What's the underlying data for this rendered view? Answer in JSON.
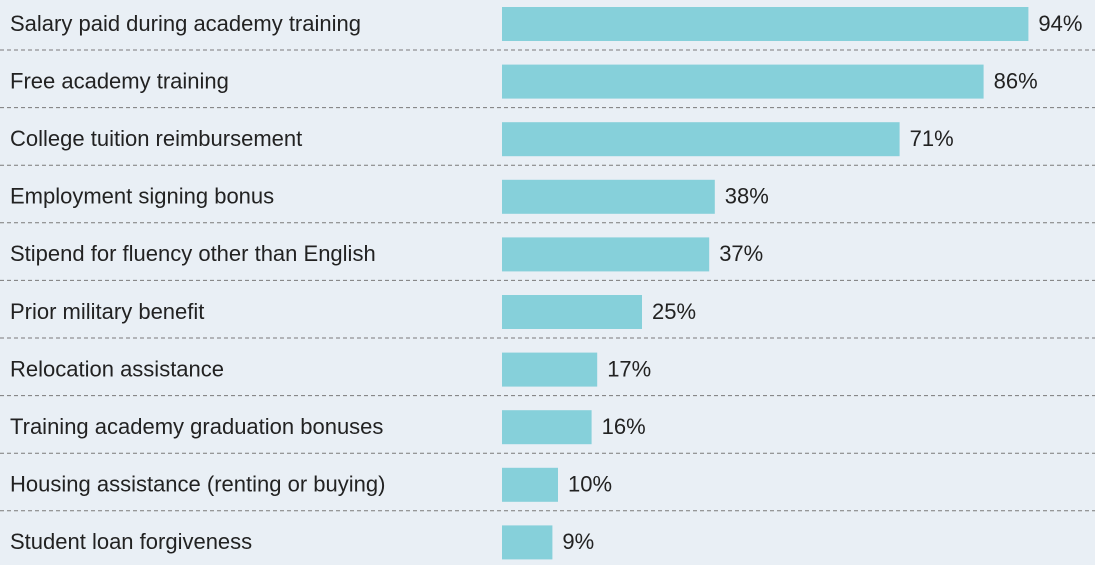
{
  "chart_data": {
    "type": "bar",
    "orientation": "horizontal",
    "categories": [
      "Salary paid during academy training",
      "Free academy training",
      "College tuition reimbursement",
      "Employment signing bonus",
      "Stipend for fluency other than English",
      "Prior military benefit",
      "Relocation assistance",
      "Training academy graduation bonuses",
      "Housing assistance (renting or buying)",
      "Student loan forgiveness"
    ],
    "values": [
      94,
      86,
      71,
      38,
      37,
      25,
      17,
      16,
      10,
      9
    ],
    "value_labels": [
      "94%",
      "86%",
      "71%",
      "38%",
      "37%",
      "25%",
      "17%",
      "16%",
      "10%",
      "9%"
    ],
    "color": "#86d0da",
    "xlim": [
      0,
      100
    ]
  }
}
